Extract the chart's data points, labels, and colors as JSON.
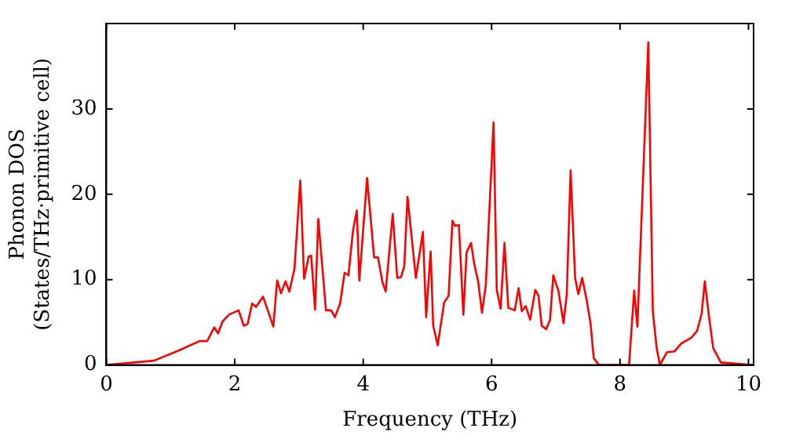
{
  "chart_data": {
    "type": "line",
    "xlabel": "Frequency (THz)",
    "ylabel": "Phonon DOS\n(States/THz·primitive cell)",
    "xlim": [
      0,
      10.08
    ],
    "ylim": [
      0,
      40
    ],
    "xticks": [
      0,
      2,
      4,
      6,
      8,
      10
    ],
    "yticks": [
      0,
      10,
      20,
      30
    ],
    "grid": false,
    "legend": false,
    "marker": "none",
    "line_style": "solid",
    "series": [
      {
        "color": "#ff0000",
        "x": [
          0,
          0.74,
          1.16,
          1.45,
          1.57,
          1.68,
          1.74,
          1.81,
          1.91,
          2.06,
          2.14,
          2.2,
          2.27,
          2.33,
          2.44,
          2.51,
          2.6,
          2.66,
          2.72,
          2.79,
          2.85,
          2.93,
          3.02,
          3.08,
          3.15,
          3.19,
          3.25,
          3.3,
          3.42,
          3.5,
          3.56,
          3.64,
          3.71,
          3.77,
          3.84,
          3.9,
          3.94,
          4.06,
          4.17,
          4.23,
          4.3,
          4.35,
          4.46,
          4.53,
          4.59,
          4.64,
          4.69,
          4.82,
          4.93,
          4.98,
          5.05,
          5.09,
          5.16,
          5.26,
          5.33,
          5.39,
          5.43,
          5.49,
          5.56,
          5.61,
          5.68,
          5.73,
          5.79,
          5.85,
          5.91,
          6.03,
          6.08,
          6.14,
          6.2,
          6.26,
          6.36,
          6.42,
          6.47,
          6.53,
          6.6,
          6.68,
          6.73,
          6.78,
          6.85,
          6.91,
          6.96,
          7.04,
          7.12,
          7.17,
          7.23,
          7.3,
          7.35,
          7.41,
          7.48,
          7.54,
          7.59,
          7.67,
          8.14,
          8.22,
          8.27,
          8.44,
          8.51,
          8.57,
          8.62,
          8.73,
          8.85,
          8.95,
          9.11,
          9.2,
          9.27,
          9.32,
          9.38,
          9.45,
          9.57,
          10.05
        ],
        "values": [
          0,
          0.5,
          1.8,
          2.8,
          2.8,
          4.4,
          3.7,
          5.1,
          5.9,
          6.4,
          4.6,
          4.8,
          7.2,
          6.8,
          8,
          6.5,
          4.5,
          9.9,
          8.4,
          9.8,
          8.6,
          11.3,
          21.6,
          10.1,
          12.7,
          12.8,
          6.5,
          17.1,
          6.4,
          6.4,
          5.6,
          7.2,
          10.8,
          10.5,
          15.7,
          18.1,
          9.9,
          21.9,
          12.6,
          12.6,
          9.7,
          8.6,
          17.7,
          10.2,
          10.3,
          11.6,
          19.7,
          10.2,
          15.6,
          5.6,
          13.3,
          4.6,
          2.3,
          7.3,
          8.1,
          16.9,
          16.3,
          16.4,
          5.9,
          13.2,
          14.3,
          11.8,
          9.8,
          6.1,
          9.4,
          28.4,
          8.8,
          6.6,
          14.3,
          6.7,
          6.4,
          9,
          6.3,
          6.9,
          5.3,
          8.8,
          8.1,
          4.6,
          4.2,
          5.3,
          10.5,
          8.7,
          4.9,
          8.3,
          22.8,
          10.2,
          8.3,
          10.2,
          7.6,
          4.9,
          0.8,
          0,
          0,
          8.7,
          4.5,
          37.8,
          6.3,
          2,
          0,
          1.5,
          1.6,
          2.5,
          3.2,
          4,
          6,
          9.8,
          6,
          2,
          0.3,
          0
        ]
      }
    ]
  }
}
